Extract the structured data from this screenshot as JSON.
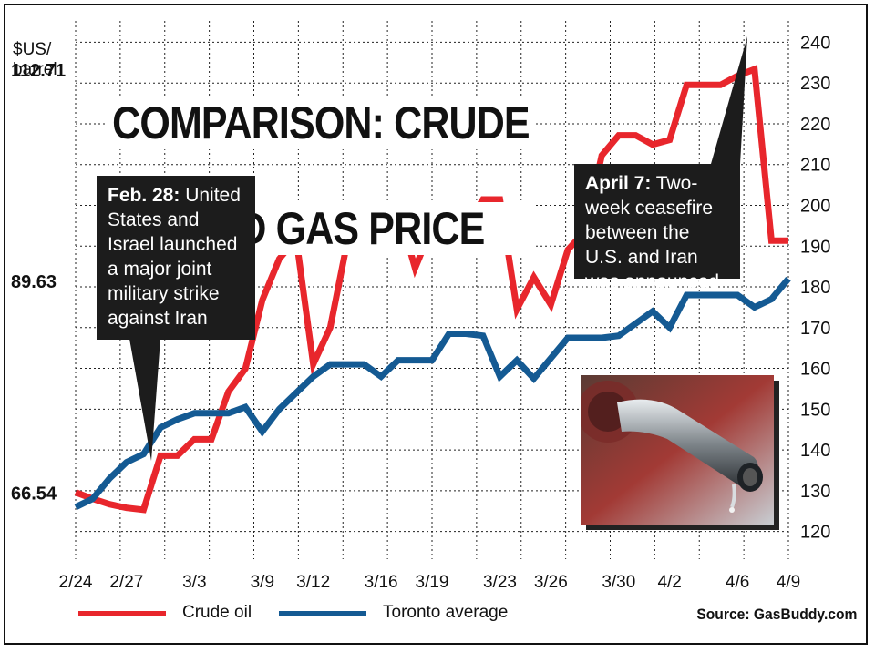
{
  "chart_data": {
    "type": "line",
    "title": "COMPARISON: CRUDE OIL AND GAS PRICE",
    "title_lines": [
      "COMPARISON: CRUDE",
      "OIL AND GAS PRICE"
    ],
    "categories": [
      "2/24",
      "2/25",
      "2/26",
      "2/27",
      "2/28",
      "3/1",
      "3/2",
      "3/3",
      "3/4",
      "3/5",
      "3/6",
      "3/9",
      "3/10",
      "3/11",
      "3/12",
      "3/13",
      "3/14",
      "3/15",
      "3/16",
      "3/17",
      "3/18",
      "3/19",
      "3/20",
      "3/21",
      "3/22",
      "3/23",
      "3/24",
      "3/25",
      "3/26",
      "3/27",
      "3/28",
      "3/29",
      "3/30",
      "3/31",
      "4/1",
      "4/2",
      "4/3",
      "4/4",
      "4/5",
      "4/6",
      "4/7",
      "4/8",
      "4/9"
    ],
    "x_tick_labels": [
      "2/24",
      "2/27",
      "3/3",
      "3/9",
      "3/12",
      "3/16",
      "3/19",
      "3/23",
      "3/26",
      "3/30",
      "4/2",
      "4/6",
      "4/9"
    ],
    "left_axis": {
      "label_top": "112.71",
      "unit": "$US/\nbarrel",
      "ticks": [
        "112.71",
        "89.63",
        "66.54"
      ],
      "ylim": [
        60,
        117
      ]
    },
    "right_axis": {
      "ticks": [
        "240",
        "230",
        "220",
        "210",
        "200",
        "190",
        "180",
        "170",
        "160",
        "150",
        "140",
        "130",
        "120"
      ],
      "ylim": [
        115,
        243
      ]
    },
    "series": [
      {
        "name": "Crude oil",
        "axis": "left",
        "color": "#e8262c",
        "values": [
          66.5,
          65.8,
          65.2,
          64.8,
          64.6,
          70.5,
          70.5,
          72.3,
          72.3,
          77.5,
          80.0,
          87.5,
          92.0,
          94.2,
          80.5,
          84.5,
          93.8,
          97.5,
          97.5,
          97.5,
          91.0,
          95.5,
          95.5,
          95.5,
          98.5,
          98.5,
          86.5,
          90.0,
          87.0,
          93.0,
          95.0,
          103.3,
          105.5,
          105.5,
          104.5,
          105.0,
          111.0,
          111.0,
          111.0,
          112.0,
          112.71,
          94.0,
          94.0
        ]
      },
      {
        "name": "Toronto average",
        "axis": "right",
        "color": "#145a93",
        "values": [
          126,
          128,
          133,
          137,
          139,
          145.5,
          147.5,
          149,
          149,
          149,
          150.5,
          144.5,
          150,
          154,
          158,
          161,
          161,
          161,
          158,
          162,
          162,
          162,
          168.5,
          168.5,
          168,
          158,
          162,
          157.5,
          162.5,
          167.5,
          167.5,
          167.5,
          168,
          171,
          174,
          170,
          178,
          178,
          178,
          178,
          175,
          177,
          182
        ]
      }
    ],
    "annotations": [
      {
        "bold": "Feb. 28:",
        "text": " United States and Israel launched a major joint military strike against Iran"
      },
      {
        "bold": "April 7:",
        "text": " Two-week ceasefire between the U.S. and Iran was announced."
      }
    ],
    "legend": [
      "Crude oil",
      "Toronto average"
    ],
    "source": "Source: GasBuddy.com",
    "grid": true
  }
}
